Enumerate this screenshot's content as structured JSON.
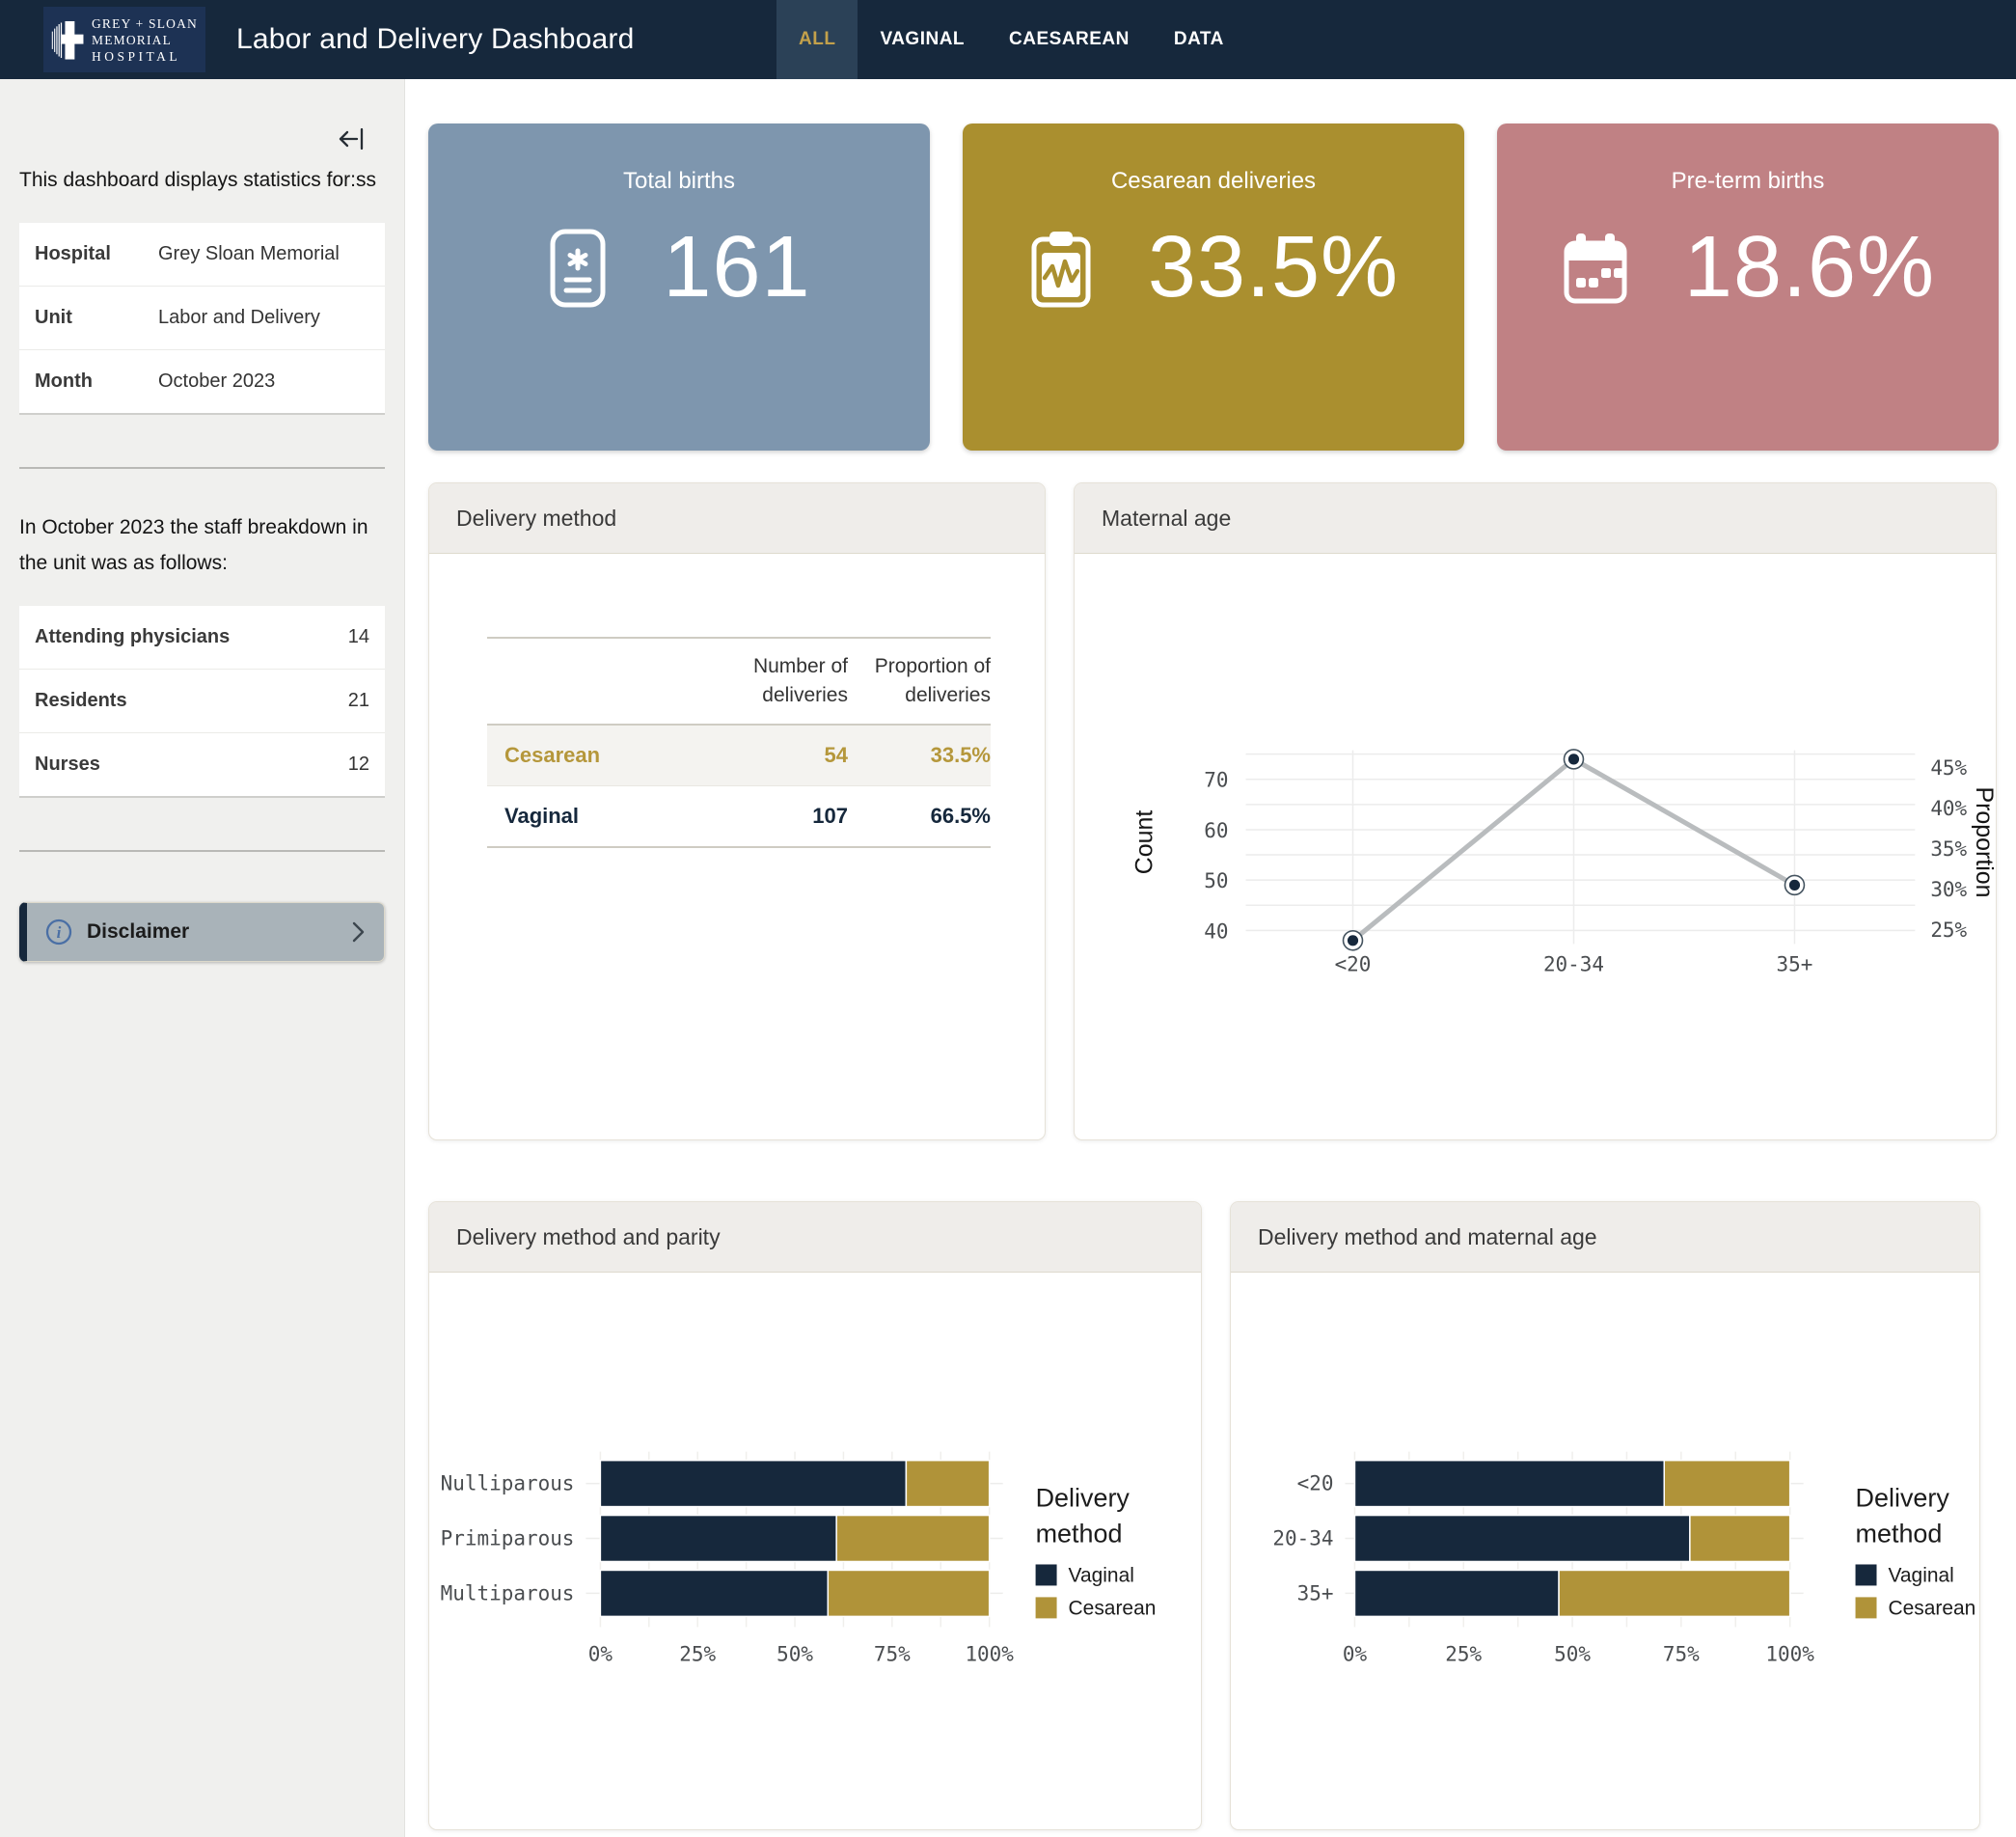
{
  "header": {
    "logo": {
      "line1": "GREY + SLOAN",
      "line2": "MEMORIAL",
      "line3": "HOSPITAL"
    },
    "title": "Labor and Delivery Dashboard",
    "tabs": [
      {
        "label": "ALL",
        "active": true
      },
      {
        "label": "VAGINAL",
        "active": false
      },
      {
        "label": "CAESAREAN",
        "active": false
      },
      {
        "label": "DATA",
        "active": false
      }
    ]
  },
  "sidebar": {
    "intro": "This dashboard displays statistics for:ss",
    "info_table": [
      {
        "label": "Hospital",
        "value": "Grey Sloan Memorial"
      },
      {
        "label": "Unit",
        "value": "Labor and Delivery"
      },
      {
        "label": "Month",
        "value": "October 2023"
      }
    ],
    "staff_intro": "In October 2023 the staff breakdown in the unit was as follows:",
    "staff_table": [
      {
        "label": "Attending physicians",
        "value": "14"
      },
      {
        "label": "Residents",
        "value": "21"
      },
      {
        "label": "Nurses",
        "value": "12"
      }
    ],
    "disclaimer_label": "Disclaimer"
  },
  "kpis": [
    {
      "title": "Total births",
      "value": "161",
      "color": "#7e96ae",
      "icon": "birth-record-icon"
    },
    {
      "title": "Cesarean deliveries",
      "value": "33.5%",
      "color": "#aa8f2f",
      "icon": "clipboard-pulse-icon"
    },
    {
      "title": "Pre-term births",
      "value": "18.6%",
      "color": "#c08184",
      "icon": "calendar-icon"
    }
  ],
  "delivery_method_panel": {
    "title": "Delivery method",
    "col_label": "",
    "col_number": "Number of deliveries",
    "col_proportion": "Proportion of deliveries",
    "rows": [
      {
        "label": "Cesarean",
        "count": "54",
        "prop": "33.5%"
      },
      {
        "label": "Vaginal",
        "count": "107",
        "prop": "66.5%"
      }
    ]
  },
  "colors": {
    "navy": "#16283c",
    "gold": "#b09339",
    "nav_selected_bg": "#2b4157",
    "nav_selected_text": "#c3a14b",
    "kpi_blue": "#7e96ae",
    "kpi_gold": "#aa8f2f",
    "kpi_rose": "#c08184",
    "panel_header_bg": "#efedea",
    "line_gray": "#b9bcbe"
  },
  "chart_data": [
    {
      "id": "maternal-age",
      "type": "line",
      "title": "Maternal age",
      "categories": [
        "<20",
        "20-34",
        "35+"
      ],
      "series": [
        {
          "name": "Count",
          "values": [
            38,
            74,
            49
          ]
        }
      ],
      "total_births": 161,
      "y_left": {
        "label": "Count",
        "ticks": [
          40,
          50,
          60,
          70
        ],
        "grid_step": 5,
        "range": [
          40,
          75
        ]
      },
      "y_right": {
        "label": "Proportion",
        "ticks_pct": [
          25,
          30,
          35,
          40,
          45
        ]
      },
      "grid": true,
      "line_color": "#b9bcbe",
      "marker_color": "#16283c"
    },
    {
      "id": "parity",
      "type": "stacked-bar-100",
      "title": "Delivery method and parity",
      "categories": [
        "Nulliparous",
        "Primiparous",
        "Multiparous"
      ],
      "series": [
        {
          "name": "Vaginal",
          "color": "#16283c",
          "values_pct": [
            78.6,
            60.7,
            58.5
          ]
        },
        {
          "name": "Cesarean",
          "color": "#b09339",
          "values_pct": [
            21.4,
            39.3,
            41.5
          ]
        }
      ],
      "x_ticks": [
        "0%",
        "25%",
        "50%",
        "75%",
        "100%"
      ],
      "legend_title": "Delivery method",
      "legend_position": "right",
      "xlim": [
        0,
        100
      ]
    },
    {
      "id": "age-method",
      "type": "stacked-bar-100",
      "title": "Delivery method and maternal age",
      "categories": [
        "<20",
        "20-34",
        "35+"
      ],
      "series": [
        {
          "name": "Vaginal",
          "color": "#16283c",
          "values_pct": [
            71.1,
            77.0,
            46.9
          ]
        },
        {
          "name": "Cesarean",
          "color": "#b09339",
          "values_pct": [
            28.9,
            23.0,
            53.1
          ]
        }
      ],
      "x_ticks": [
        "0%",
        "25%",
        "50%",
        "75%",
        "100%"
      ],
      "legend_title": "Delivery method",
      "legend_position": "right",
      "xlim": [
        0,
        100
      ]
    }
  ]
}
